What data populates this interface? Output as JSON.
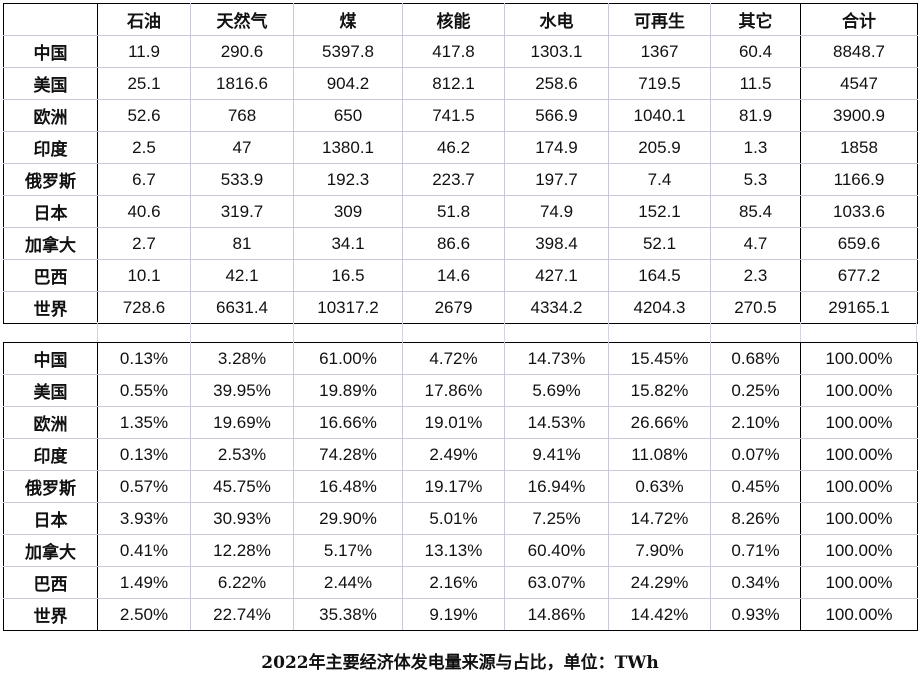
{
  "table": {
    "columns": [
      "",
      "石油",
      "天然气",
      "煤",
      "核能",
      "水电",
      "可再生",
      "其它",
      "合计"
    ],
    "values": {
      "rows": [
        {
          "region": "中国",
          "cells": [
            "11.9",
            "290.6",
            "5397.8",
            "417.8",
            "1303.1",
            "1367",
            "60.4",
            "8848.7"
          ]
        },
        {
          "region": "美国",
          "cells": [
            "25.1",
            "1816.6",
            "904.2",
            "812.1",
            "258.6",
            "719.5",
            "11.5",
            "4547"
          ]
        },
        {
          "region": "欧洲",
          "cells": [
            "52.6",
            "768",
            "650",
            "741.5",
            "566.9",
            "1040.1",
            "81.9",
            "3900.9"
          ]
        },
        {
          "region": "印度",
          "cells": [
            "2.5",
            "47",
            "1380.1",
            "46.2",
            "174.9",
            "205.9",
            "1.3",
            "1858"
          ]
        },
        {
          "region": "俄罗斯",
          "cells": [
            "6.7",
            "533.9",
            "192.3",
            "223.7",
            "197.7",
            "7.4",
            "5.3",
            "1166.9"
          ]
        },
        {
          "region": "日本",
          "cells": [
            "40.6",
            "319.7",
            "309",
            "51.8",
            "74.9",
            "152.1",
            "85.4",
            "1033.6"
          ]
        },
        {
          "region": "加拿大",
          "cells": [
            "2.7",
            "81",
            "34.1",
            "86.6",
            "398.4",
            "52.1",
            "4.7",
            "659.6"
          ]
        },
        {
          "region": "巴西",
          "cells": [
            "10.1",
            "42.1",
            "16.5",
            "14.6",
            "427.1",
            "164.5",
            "2.3",
            "677.2"
          ]
        }
      ],
      "total": {
        "region": "世界",
        "cells": [
          "728.6",
          "6631.4",
          "10317.2",
          "2679",
          "4334.2",
          "4204.3",
          "270.5",
          "29165.1"
        ]
      }
    },
    "shares": {
      "rows": [
        {
          "region": "中国",
          "cells": [
            "0.13%",
            "3.28%",
            "61.00%",
            "4.72%",
            "14.73%",
            "15.45%",
            "0.68%",
            "100.00%"
          ]
        },
        {
          "region": "美国",
          "cells": [
            "0.55%",
            "39.95%",
            "19.89%",
            "17.86%",
            "5.69%",
            "15.82%",
            "0.25%",
            "100.00%"
          ]
        },
        {
          "region": "欧洲",
          "cells": [
            "1.35%",
            "19.69%",
            "16.66%",
            "19.01%",
            "14.53%",
            "26.66%",
            "2.10%",
            "100.00%"
          ]
        },
        {
          "region": "印度",
          "cells": [
            "0.13%",
            "2.53%",
            "74.28%",
            "2.49%",
            "9.41%",
            "11.08%",
            "0.07%",
            "100.00%"
          ]
        },
        {
          "region": "俄罗斯",
          "cells": [
            "0.57%",
            "45.75%",
            "16.48%",
            "19.17%",
            "16.94%",
            "0.63%",
            "0.45%",
            "100.00%"
          ]
        },
        {
          "region": "日本",
          "cells": [
            "3.93%",
            "30.93%",
            "29.90%",
            "5.01%",
            "7.25%",
            "14.72%",
            "8.26%",
            "100.00%"
          ]
        },
        {
          "region": "加拿大",
          "cells": [
            "0.41%",
            "12.28%",
            "5.17%",
            "13.13%",
            "60.40%",
            "7.90%",
            "0.71%",
            "100.00%"
          ]
        },
        {
          "region": "巴西",
          "cells": [
            "1.49%",
            "6.22%",
            "2.44%",
            "2.16%",
            "63.07%",
            "24.29%",
            "0.34%",
            "100.00%"
          ]
        }
      ],
      "total": {
        "region": "世界",
        "cells": [
          "2.50%",
          "22.74%",
          "35.38%",
          "9.19%",
          "14.86%",
          "14.42%",
          "0.93%",
          "100.00%"
        ]
      }
    }
  },
  "caption": "2022年主要经济体发电量来源与占比，单位：TWh"
}
